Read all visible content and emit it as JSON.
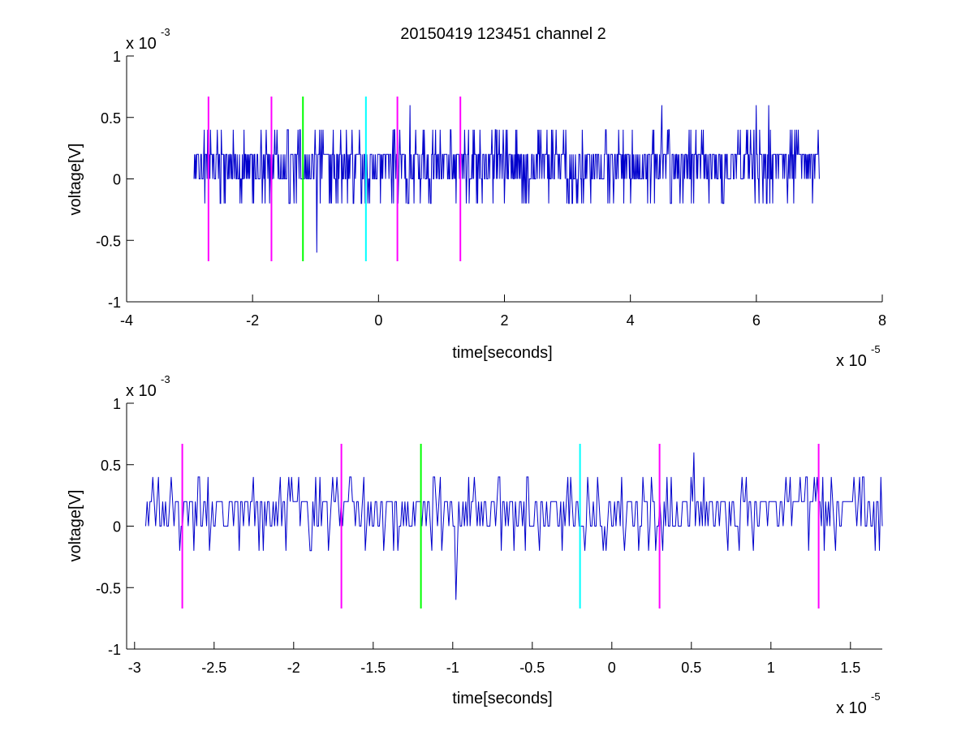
{
  "title": "20150419 123451 channel 2",
  "colors": {
    "signal": "#0000cc",
    "magenta": "#ff00ff",
    "green": "#00ff00",
    "cyan": "#00ffff"
  },
  "chart_data": [
    {
      "type": "line",
      "xlabel": "time[seconds]",
      "ylabel": "voltage[V]",
      "x_multiplier_label": {
        "base": "x 10",
        "exp": "-5"
      },
      "y_multiplier_label": {
        "base": "x 10",
        "exp": "-3"
      },
      "xlim": [
        -4,
        8
      ],
      "ylim": [
        -1,
        1
      ],
      "xticks": [
        "-4",
        "-2",
        "0",
        "2",
        "4",
        "6",
        "8"
      ],
      "xtick_values": [
        -4,
        -2,
        0,
        2,
        4,
        6,
        8
      ],
      "yticks": [
        "-1",
        "-0.5",
        "0",
        "0.5",
        "1"
      ],
      "ytick_values": [
        -1,
        -0.5,
        0,
        0.5,
        1
      ],
      "grid": false,
      "series": [
        {
          "kind": "noise-trace",
          "x_range": [
            -2.93,
            7.0
          ],
          "levels": [
            -0.2,
            0,
            0.2,
            0.4
          ],
          "spikes": [
            [
              -0.98,
              -0.6
            ],
            [
              0.5,
              0.6
            ],
            [
              4.5,
              0.6
            ],
            [
              6.0,
              0.6
            ],
            [
              6.2,
              0.6
            ]
          ]
        }
      ],
      "markers": [
        {
          "x": -2.7,
          "color": "magenta",
          "ymin": -0.67,
          "ymax": 0.67
        },
        {
          "x": -1.7,
          "color": "magenta",
          "ymin": -0.67,
          "ymax": 0.67
        },
        {
          "x": -1.2,
          "color": "green",
          "ymin": -0.67,
          "ymax": 0.67
        },
        {
          "x": -0.2,
          "color": "cyan",
          "ymin": -0.67,
          "ymax": 0.67
        },
        {
          "x": 0.3,
          "color": "magenta",
          "ymin": -0.67,
          "ymax": 0.67
        },
        {
          "x": 1.3,
          "color": "magenta",
          "ymin": -0.67,
          "ymax": 0.67
        }
      ]
    },
    {
      "type": "line",
      "xlabel": "time[seconds]",
      "ylabel": "voltage[V]",
      "x_multiplier_label": {
        "base": "x 10",
        "exp": "-5"
      },
      "y_multiplier_label": {
        "base": "x 10",
        "exp": "-3"
      },
      "xlim": [
        -3.05,
        1.7
      ],
      "ylim": [
        -1,
        1
      ],
      "xticks": [
        "-3",
        "-2.5",
        "-2",
        "-1.5",
        "-1",
        "-0.5",
        "0",
        "0.5",
        "1",
        "1.5"
      ],
      "xtick_values": [
        -3,
        -2.5,
        -2,
        -1.5,
        -1,
        -0.5,
        0,
        0.5,
        1,
        1.5
      ],
      "yticks": [
        "-1",
        "-0.5",
        "0",
        "0.5",
        "1"
      ],
      "ytick_values": [
        -1,
        -0.5,
        0,
        0.5,
        1
      ],
      "grid": false,
      "series": [
        {
          "kind": "noise-trace",
          "x_range": [
            -2.93,
            1.7
          ],
          "levels": [
            -0.2,
            0,
            0.2,
            0.4
          ],
          "spikes": [
            [
              -0.98,
              -0.6
            ],
            [
              0.52,
              0.6
            ],
            [
              -2.6,
              0.4
            ],
            [
              -0.9,
              0.4
            ]
          ]
        }
      ],
      "markers": [
        {
          "x": -2.7,
          "color": "magenta",
          "ymin": -0.67,
          "ymax": 0.67
        },
        {
          "x": -1.7,
          "color": "magenta",
          "ymin": -0.67,
          "ymax": 0.67
        },
        {
          "x": -1.2,
          "color": "green",
          "ymin": -0.67,
          "ymax": 0.67
        },
        {
          "x": -0.2,
          "color": "cyan",
          "ymin": -0.67,
          "ymax": 0.67
        },
        {
          "x": 0.3,
          "color": "magenta",
          "ymin": -0.67,
          "ymax": 0.67
        },
        {
          "x": 1.3,
          "color": "magenta",
          "ymin": -0.67,
          "ymax": 0.67
        }
      ]
    }
  ]
}
